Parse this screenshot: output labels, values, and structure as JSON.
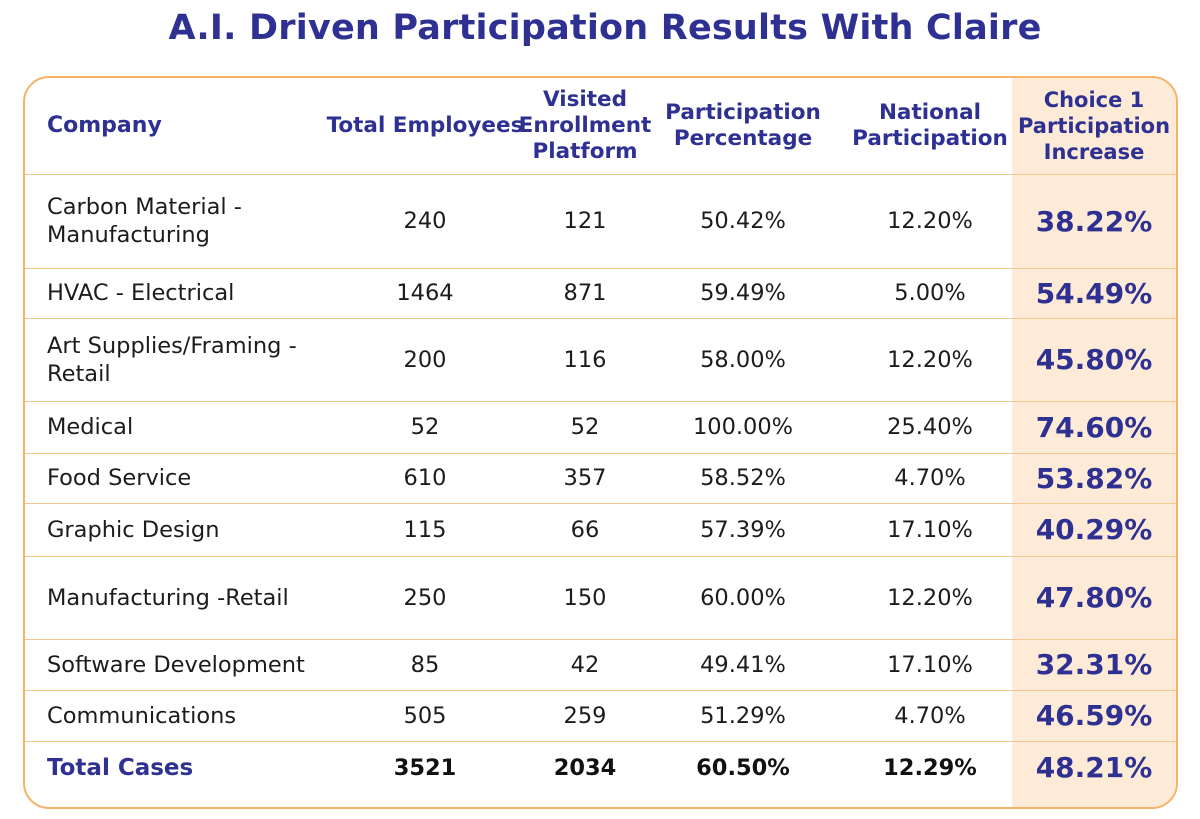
{
  "title": "A.I. Driven Participation Results With Claire",
  "colors": {
    "title": "#2e3192",
    "border": "#f7b267",
    "highlight": "#fdebd7",
    "row_line": "#f3c88f"
  },
  "chart_data": {
    "type": "table",
    "columns": [
      "Company",
      "Total Employees",
      "Visited Enrollment Platform",
      "Participation Percentage",
      "National Participation",
      "Choice 1 Participation Increase"
    ],
    "rows": [
      {
        "company": "Carbon Material -Manufacturing",
        "total": "240",
        "visited": "121",
        "participation": "50.42%",
        "national": "12.20%",
        "increase": "38.22%"
      },
      {
        "company": "HVAC - Electrical",
        "total": "1464",
        "visited": "871",
        "participation": "59.49%",
        "national": "5.00%",
        "increase": "54.49%"
      },
      {
        "company": "Art Supplies/Framing -Retail",
        "total": "200",
        "visited": "116",
        "participation": "58.00%",
        "national": "12.20%",
        "increase": "45.80%"
      },
      {
        "company": "Medical",
        "total": "52",
        "visited": "52",
        "participation": "100.00%",
        "national": "25.40%",
        "increase": "74.60%"
      },
      {
        "company": "Food Service",
        "total": "610",
        "visited": "357",
        "participation": "58.52%",
        "national": "4.70%",
        "increase": "53.82%"
      },
      {
        "company": "Graphic Design",
        "total": "115",
        "visited": "66",
        "participation": "57.39%",
        "national": "17.10%",
        "increase": "40.29%"
      },
      {
        "company": "Manufacturing -Retail",
        "total": "250",
        "visited": "150",
        "participation": "60.00%",
        "national": "12.20%",
        "increase": "47.80%"
      },
      {
        "company": "Software Development",
        "total": "85",
        "visited": "42",
        "participation": "49.41%",
        "national": "17.10%",
        "increase": "32.31%"
      },
      {
        "company": "Communications",
        "total": "505",
        "visited": "259",
        "participation": "51.29%",
        "national": "4.70%",
        "increase": "46.59%"
      }
    ],
    "totals": {
      "company": "Total Cases",
      "total": "3521",
      "visited": "2034",
      "participation": "60.50%",
      "national": "12.29%",
      "increase": "48.21%"
    }
  }
}
